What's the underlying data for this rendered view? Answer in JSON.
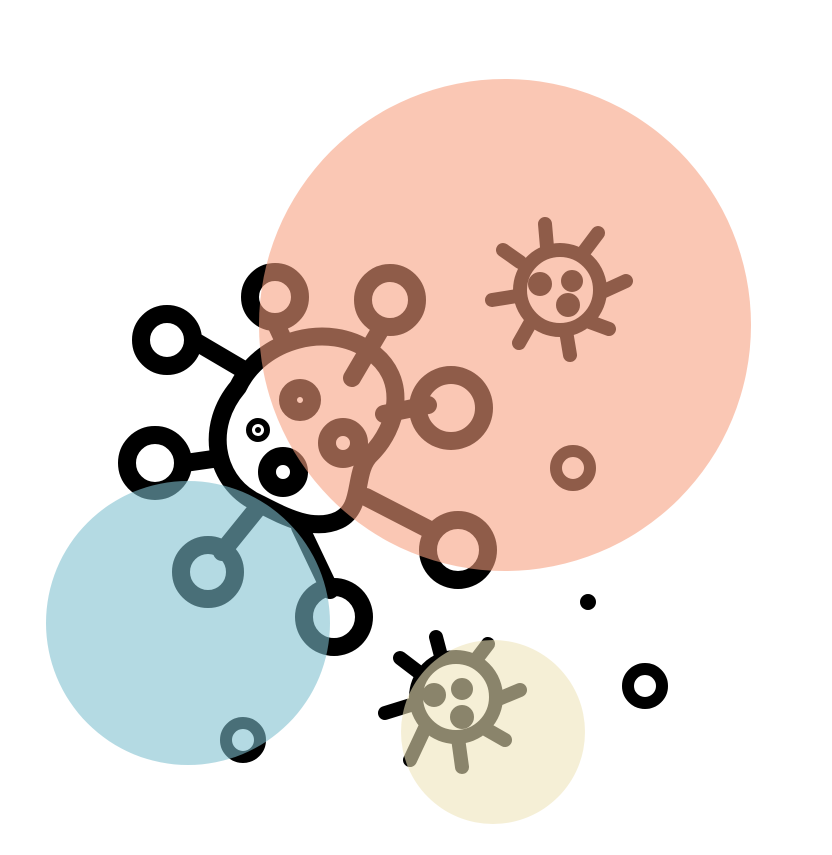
{
  "illustration": {
    "icons": [
      "large-virus-icon",
      "small-virus-icon-upper-right",
      "small-virus-icon-bottom"
    ],
    "colors": {
      "stroke": "#000000",
      "peach_circle": "#f79e7e",
      "blue_circle": "#7ec0cf",
      "cream_circle": "#ede4b8",
      "background": "#ffffff"
    }
  }
}
